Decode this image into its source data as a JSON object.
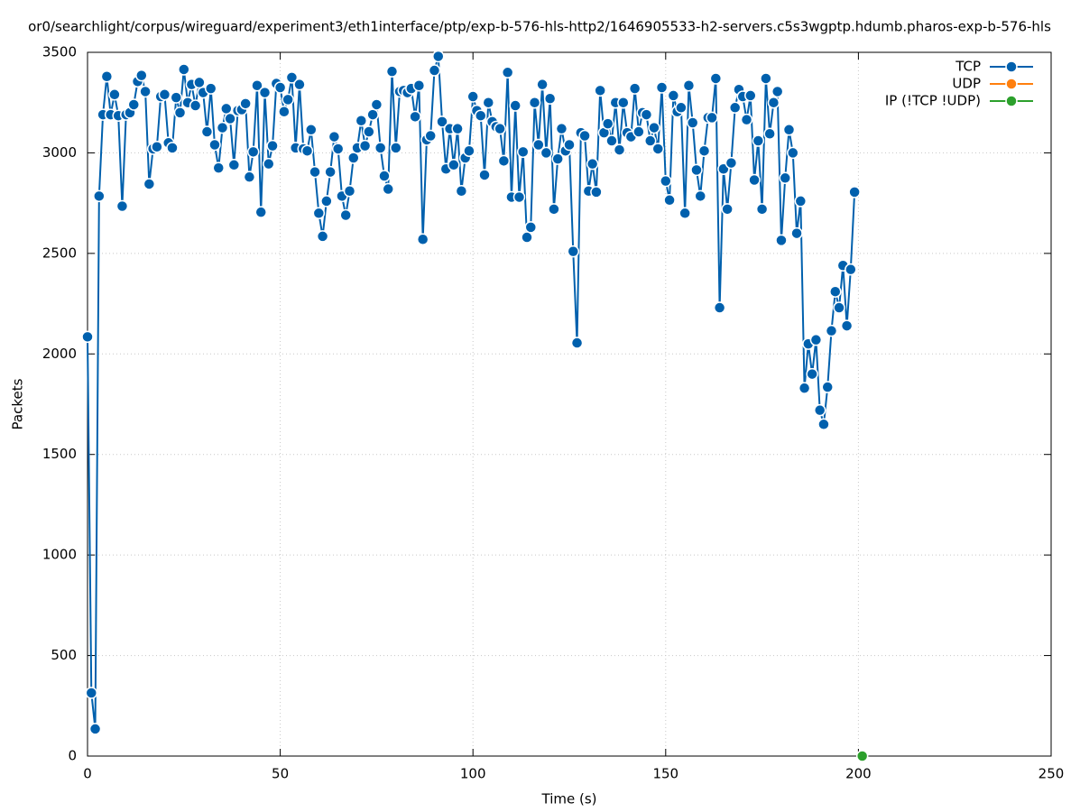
{
  "chart_data": {
    "type": "line",
    "title": "or0/searchlight/corpus/wireguard/experiment3/eth1interface/ptp/exp-b-576-hls-http2/1646905533-h2-servers.c5s3wgptp.hdumb.pharos-exp-b-576-hls",
    "x_label": "Time (s)",
    "y_label": "Packets",
    "xlim": [
      0,
      250
    ],
    "xticks": [
      0,
      50,
      100,
      150,
      200,
      250
    ],
    "ylim": [
      0,
      3500
    ],
    "yticks": [
      0,
      500,
      1000,
      1500,
      2000,
      2500,
      3000,
      3500
    ],
    "grid": true,
    "legend": "top-right",
    "series": [
      {
        "name": "TCP",
        "color": "#0060ad",
        "x": [
          0,
          1,
          2,
          3,
          4,
          5,
          6,
          7,
          8,
          9,
          10,
          11,
          12,
          13,
          14,
          15,
          16,
          17,
          18,
          19,
          20,
          21,
          22,
          23,
          24,
          25,
          26,
          27,
          28,
          29,
          30,
          31,
          32,
          33,
          34,
          35,
          36,
          37,
          38,
          39,
          40,
          41,
          42,
          43,
          44,
          45,
          46,
          47,
          48,
          49,
          50,
          51,
          52,
          53,
          54,
          55,
          56,
          57,
          58,
          59,
          60,
          61,
          62,
          63,
          64,
          65,
          66,
          67,
          68,
          69,
          70,
          71,
          72,
          73,
          74,
          75,
          76,
          77,
          78,
          79,
          80,
          81,
          82,
          83,
          84,
          85,
          86,
          87,
          88,
          89,
          90,
          91,
          92,
          93,
          94,
          95,
          96,
          97,
          98,
          99,
          100,
          101,
          102,
          103,
          104,
          105,
          106,
          107,
          108,
          109,
          110,
          111,
          112,
          113,
          114,
          115,
          116,
          117,
          118,
          119,
          120,
          121,
          122,
          123,
          124,
          125,
          126,
          127,
          128,
          129,
          130,
          131,
          132,
          133,
          134,
          135,
          136,
          137,
          138,
          139,
          140,
          141,
          142,
          143,
          144,
          145,
          146,
          147,
          148,
          149,
          150,
          151,
          152,
          153,
          154,
          155,
          156,
          157,
          158,
          159,
          160,
          161,
          162,
          163,
          164,
          165,
          166,
          167,
          168,
          169,
          170,
          171,
          172,
          173,
          174,
          175,
          176,
          177,
          178,
          179,
          180,
          181,
          182,
          183,
          184,
          185,
          186,
          187,
          188,
          189,
          190,
          191,
          192,
          193,
          194,
          195,
          196,
          197,
          198,
          199
        ],
        "values": [
          2085,
          314,
          135,
          2785,
          3190,
          3380,
          3190,
          3290,
          3185,
          2735,
          3190,
          3200,
          3240,
          3355,
          3385,
          3305,
          2845,
          3020,
          3030,
          3280,
          3290,
          3050,
          3025,
          3275,
          3200,
          3415,
          3250,
          3340,
          3235,
          3350,
          3300,
          3105,
          3320,
          3040,
          2925,
          3125,
          3220,
          3170,
          2940,
          3210,
          3215,
          3245,
          2880,
          3005,
          3335,
          2705,
          3300,
          2945,
          3035,
          3345,
          3325,
          3205,
          3265,
          3375,
          3025,
          3340,
          3020,
          3010,
          3115,
          2905,
          2700,
          2585,
          2760,
          2905,
          3080,
          3020,
          2785,
          2690,
          2810,
          2975,
          3025,
          3160,
          3035,
          3105,
          3190,
          3240,
          3025,
          2885,
          2820,
          3405,
          3025,
          3305,
          3310,
          3300,
          3320,
          3180,
          3335,
          2570,
          3065,
          3085,
          3410,
          3480,
          3155,
          2920,
          3120,
          2940,
          3120,
          2810,
          2975,
          3010,
          3280,
          3210,
          3185,
          2890,
          3250,
          3155,
          3130,
          3120,
          2960,
          3400,
          2780,
          3235,
          2780,
          3005,
          2580,
          2630,
          3250,
          3040,
          3340,
          3000,
          3270,
          2720,
          2970,
          3120,
          3010,
          3040,
          2510,
          2055,
          3100,
          3085,
          2810,
          2945,
          2805,
          3310,
          3100,
          3145,
          3060,
          3250,
          3015,
          3250,
          3100,
          3080,
          3320,
          3105,
          3200,
          3190,
          3060,
          3125,
          3020,
          3325,
          2860,
          2765,
          3285,
          3205,
          3225,
          2700,
          3335,
          3150,
          2915,
          2785,
          3010,
          3175,
          3175,
          3370,
          2230,
          2920,
          2720,
          2950,
          3225,
          3315,
          3280,
          3165,
          3285,
          2865,
          3060,
          2720,
          3370,
          3095,
          3250,
          3305,
          2565,
          2875,
          3115,
          3000,
          2600,
          2760,
          1830,
          2050,
          1900,
          2070,
          1720,
          1650,
          1835,
          2115,
          2310,
          2230,
          2440,
          2140,
          2420,
          2805
        ]
      },
      {
        "name": "UDP",
        "color": "#ff7f0e",
        "x": [],
        "values": []
      },
      {
        "name": "IP (!TCP  !UDP)",
        "color": "#2ca02c",
        "x": [
          201
        ],
        "values": [
          0
        ]
      }
    ]
  }
}
